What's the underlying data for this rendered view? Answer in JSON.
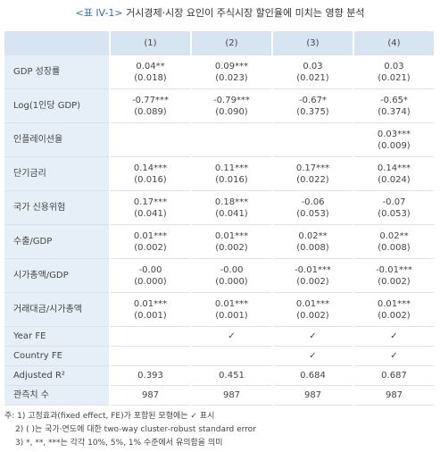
{
  "title": {
    "label": "<표 IV-1>",
    "text": "거시경제·시장 요인이 주식시장 할인율에 미치는 영향 분석"
  },
  "table": {
    "header": [
      "(1)",
      "(2)",
      "(3)",
      "(4)"
    ],
    "rows": [
      {
        "label": "GDP 성장률",
        "cells": [
          [
            "0.04**",
            "(0.018)"
          ],
          [
            "0.09***",
            "(0.023)"
          ],
          [
            "0.03",
            "(0.021)"
          ],
          [
            "0.03",
            "(0.021)"
          ]
        ]
      },
      {
        "label": "Log(1인당 GDP)",
        "cells": [
          [
            "-0.77***",
            "(0.089)"
          ],
          [
            "-0.79***",
            "(0.090)"
          ],
          [
            "-0.67*",
            "(0.375)"
          ],
          [
            "-0.65*",
            "(0.374)"
          ]
        ]
      },
      {
        "label": "인플레이션율",
        "cells": [
          null,
          null,
          null,
          [
            "0.03***",
            "(0.009)"
          ]
        ]
      },
      {
        "label": "단기금리",
        "cells": [
          [
            "0.14***",
            "(0.016)"
          ],
          [
            "0.11***",
            "(0.016)"
          ],
          [
            "0.17***",
            "(0.022)"
          ],
          [
            "0.14***",
            "(0.024)"
          ]
        ]
      },
      {
        "label": "국가 신용위험",
        "cells": [
          [
            "0.17***",
            "(0.041)"
          ],
          [
            "0.18***",
            "(0.041)"
          ],
          [
            "-0.06",
            "(0.053)"
          ],
          [
            "-0.07",
            "(0.053)"
          ]
        ]
      },
      {
        "label": "수출/GDP",
        "cells": [
          [
            "0.01***",
            "(0.002)"
          ],
          [
            "0.01***",
            "(0.002)"
          ],
          [
            "0.02**",
            "(0.008)"
          ],
          [
            "0.02**",
            "(0.008)"
          ]
        ]
      },
      {
        "label": "시가총액/GDP",
        "cells": [
          [
            "-0.00",
            "(0.000)"
          ],
          [
            "-0.00",
            "(0.000)"
          ],
          [
            "-0.01***",
            "(0.002)"
          ],
          [
            "-0.01***",
            "(0.002)"
          ]
        ]
      },
      {
        "label": "거래대금/시가총액",
        "cells": [
          [
            "0.01***",
            "(0.001)"
          ],
          [
            "0.01***",
            "(0.001)"
          ],
          [
            "0.01***",
            "(0.002)"
          ],
          [
            "0.01***",
            "(0.002)"
          ]
        ]
      },
      {
        "label": "Year FE",
        "cells": [
          null,
          "✓",
          "✓",
          "✓"
        ]
      },
      {
        "label": "Country FE",
        "cells": [
          null,
          null,
          "✓",
          "✓"
        ]
      },
      {
        "label": "Adjusted R²",
        "cells": [
          "0.393",
          "0.451",
          "0.684",
          "0.687"
        ]
      },
      {
        "label": "관측치 수",
        "cells": [
          "987",
          "987",
          "987",
          "987"
        ]
      }
    ]
  },
  "notes": [
    "주: 1) 고정효과(fixed effect, FE)가 포함된 모형에는 ✓ 표시",
    "2) ( )는 국가·연도에 대한 two-way cluster-robust standard error",
    "3) *, **, ***는 각각 10%, 5%, 1% 수준에서 유의함을 의미"
  ]
}
